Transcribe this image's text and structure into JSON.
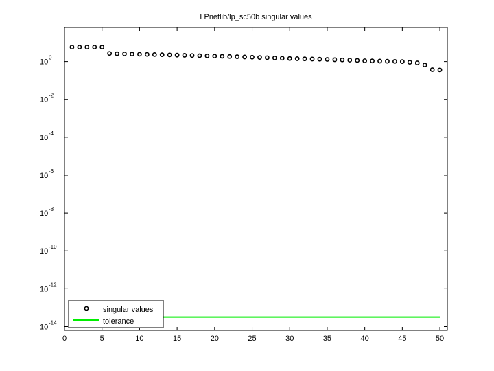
{
  "chart_data": {
    "type": "scatter",
    "title": "LPnetlib/lp_sc50b singular values",
    "xlabel": "",
    "ylabel": "",
    "yscale": "log",
    "xlim": [
      0,
      51
    ],
    "ylim_log10": [
      -14.2,
      1.8
    ],
    "x_ticks": [
      0,
      5,
      10,
      15,
      20,
      25,
      30,
      35,
      40,
      45,
      50
    ],
    "y_ticks": [
      {
        "exp": 0,
        "label_base": "10",
        "label_exp": "0"
      },
      {
        "exp": -2,
        "label_base": "10",
        "label_exp": "-2"
      },
      {
        "exp": -4,
        "label_base": "10",
        "label_exp": "-4"
      },
      {
        "exp": -6,
        "label_base": "10",
        "label_exp": "-6"
      },
      {
        "exp": -8,
        "label_base": "10",
        "label_exp": "-8"
      },
      {
        "exp": -10,
        "label_base": "10",
        "label_exp": "-10"
      },
      {
        "exp": -12,
        "label_base": "10",
        "label_exp": "-12"
      },
      {
        "exp": -14,
        "label_base": "10",
        "label_exp": "-14"
      }
    ],
    "grid": false,
    "legend_position": "lower left",
    "series": [
      {
        "name": "singular values",
        "marker": "circle",
        "color": "#000000",
        "x": [
          1,
          2,
          3,
          4,
          5,
          6,
          7,
          8,
          9,
          10,
          11,
          12,
          13,
          14,
          15,
          16,
          17,
          18,
          19,
          20,
          21,
          22,
          23,
          24,
          25,
          26,
          27,
          28,
          29,
          30,
          31,
          32,
          33,
          34,
          35,
          36,
          37,
          38,
          39,
          40,
          41,
          42,
          43,
          44,
          45,
          46,
          47,
          48,
          49,
          50
        ],
        "values": [
          5.8,
          5.8,
          5.8,
          5.8,
          5.8,
          2.7,
          2.6,
          2.55,
          2.5,
          2.45,
          2.4,
          2.35,
          2.3,
          2.25,
          2.2,
          2.15,
          2.1,
          2.05,
          2.0,
          1.95,
          1.9,
          1.85,
          1.8,
          1.75,
          1.7,
          1.65,
          1.6,
          1.55,
          1.5,
          1.45,
          1.42,
          1.39,
          1.36,
          1.33,
          1.3,
          1.25,
          1.22,
          1.19,
          1.15,
          1.1,
          1.08,
          1.06,
          1.04,
          1.02,
          1.0,
          0.92,
          0.85,
          0.66,
          0.37,
          0.36
        ]
      },
      {
        "name": "tolerance",
        "marker": "line",
        "color": "#00ee00",
        "x": [
          1,
          50
        ],
        "values": [
          3.2e-14,
          3.2e-14
        ]
      }
    ]
  },
  "legend": {
    "items": [
      {
        "label": "singular values"
      },
      {
        "label": "tolerance"
      }
    ]
  }
}
